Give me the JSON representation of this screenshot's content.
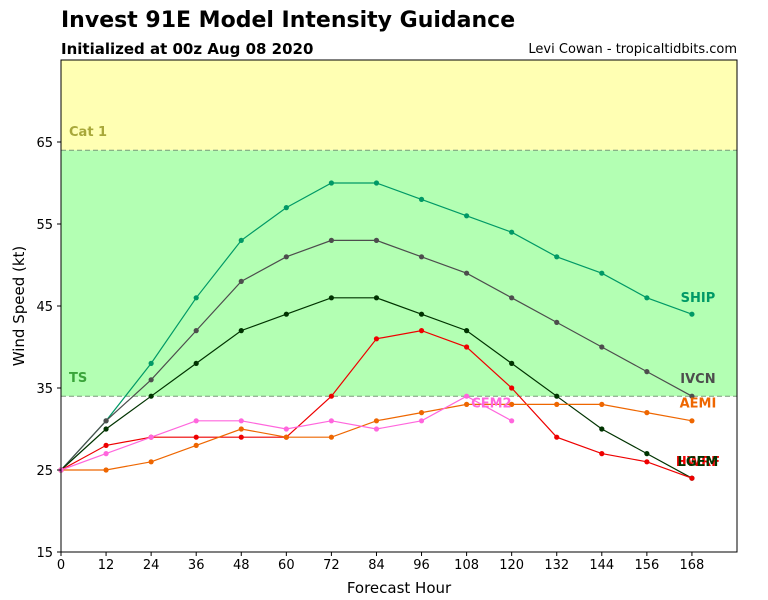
{
  "title": "Invest 91E Model Intensity Guidance",
  "subtitle": "Initialized at 00z Aug 08 2020",
  "credit": "Levi Cowan - tropicaltidbits.com",
  "chart_data": {
    "type": "line",
    "xlabel": "Forecast Hour",
    "ylabel": "Wind Speed (kt)",
    "xlim": [
      0,
      180
    ],
    "ylim": [
      15,
      75
    ],
    "xticks": [
      0,
      12,
      24,
      36,
      48,
      60,
      72,
      84,
      96,
      108,
      120,
      132,
      144,
      156,
      168
    ],
    "yticks": [
      15,
      25,
      35,
      45,
      55,
      65
    ],
    "bands": [
      {
        "label": "TS",
        "from": 34,
        "to": 64,
        "color": "#b3ffb3",
        "label_color": "#3aa53a"
      },
      {
        "label": "Cat 1",
        "from": 64,
        "to": 75,
        "color": "#ffffb3",
        "label_color": "#a8a83a"
      }
    ],
    "series": [
      {
        "name": "SHIP",
        "color": "#009966",
        "x": [
          0,
          12,
          24,
          36,
          48,
          60,
          72,
          84,
          96,
          108,
          120,
          132,
          144,
          156,
          168
        ],
        "y": [
          25,
          31,
          38,
          46,
          53,
          57,
          60,
          60,
          58,
          56,
          54,
          51,
          49,
          46,
          44
        ]
      },
      {
        "name": "IVCN",
        "color": "#4d4d4d",
        "x": [
          0,
          12,
          24,
          36,
          48,
          60,
          72,
          84,
          96,
          108,
          120,
          132,
          144,
          156,
          168
        ],
        "y": [
          25,
          31,
          36,
          42,
          48,
          51,
          53,
          53,
          51,
          49,
          46,
          43,
          40,
          37,
          34
        ]
      },
      {
        "name": "LGEM",
        "color": "#003300",
        "x": [
          0,
          12,
          24,
          36,
          48,
          60,
          72,
          84,
          96,
          108,
          120,
          132,
          144,
          156,
          168
        ],
        "y": [
          25,
          30,
          34,
          38,
          42,
          44,
          46,
          46,
          44,
          42,
          38,
          34,
          30,
          27,
          24
        ]
      },
      {
        "name": "HWRF",
        "color": "#ee0000",
        "x": [
          0,
          12,
          24,
          36,
          48,
          60,
          72,
          84,
          96,
          108,
          120,
          132,
          144,
          156,
          168
        ],
        "y": [
          25,
          28,
          29,
          29,
          29,
          29,
          34,
          41,
          42,
          40,
          35,
          29,
          27,
          26,
          24
        ]
      },
      {
        "name": "AEMI",
        "color": "#ee6600",
        "x": [
          0,
          12,
          24,
          36,
          48,
          60,
          72,
          84,
          96,
          108,
          120,
          132,
          144,
          156,
          168
        ],
        "y": [
          25,
          25,
          26,
          28,
          30,
          29,
          29,
          31,
          32,
          33,
          33,
          33,
          33,
          32,
          31
        ]
      },
      {
        "name": "CEM2",
        "color": "#ff66dd",
        "x": [
          0,
          12,
          24,
          36,
          48,
          60,
          72,
          84,
          96,
          108,
          120
        ],
        "y": [
          25,
          27,
          29,
          31,
          31,
          30,
          31,
          30,
          31,
          34,
          31
        ]
      }
    ],
    "end_labels": [
      {
        "text": "SHIP",
        "color": "#009966",
        "x": 168,
        "y": 45.5
      },
      {
        "text": "IVCN",
        "color": "#4d4d4d",
        "x": 168,
        "y": 35.6
      },
      {
        "text": "AEMI",
        "color": "#ee6600",
        "x": 168,
        "y": 32.6
      },
      {
        "text": "CEM2",
        "color": "#ff66dd",
        "x": 113,
        "y": 32.6
      },
      {
        "text": "HWRF",
        "color": "#ee0000",
        "x": 168,
        "y": 25.5
      },
      {
        "text": "LGEM",
        "color": "#003300",
        "x": 168,
        "y": 25.5
      }
    ],
    "grid": false,
    "legend": "none"
  }
}
